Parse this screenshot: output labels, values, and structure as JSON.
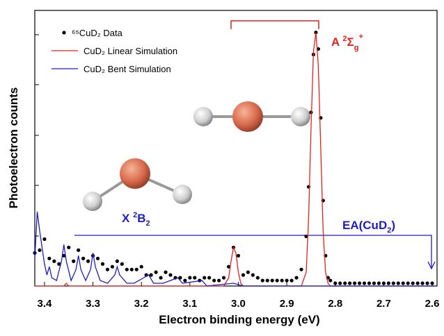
{
  "chart_data": {
    "type": "spectrum",
    "xlabel": "Electron binding energy (eV)",
    "ylabel": "Photoelectron counts",
    "xlim": [
      3.42,
      2.59
    ],
    "ylim": [
      0,
      100
    ],
    "xticks": [
      3.4,
      3.3,
      3.2,
      3.1,
      {
        "value": 3.0,
        "label": "3.0"
      },
      2.9,
      2.8,
      2.7,
      2.6
    ],
    "legend": "upper left",
    "series": [
      {
        "name": "⁶⁵CuD₂ Data",
        "style": "dots",
        "color": "#000000",
        "x": [
          3.42,
          3.41,
          3.4,
          3.39,
          3.38,
          3.37,
          3.36,
          3.35,
          3.34,
          3.33,
          3.32,
          3.31,
          3.3,
          3.29,
          3.28,
          3.27,
          3.26,
          3.25,
          3.24,
          3.23,
          3.22,
          3.21,
          3.2,
          3.19,
          3.18,
          3.17,
          3.16,
          3.15,
          3.14,
          3.13,
          3.12,
          3.11,
          3.1,
          3.09,
          3.08,
          3.07,
          3.06,
          3.05,
          3.04,
          3.03,
          3.02,
          3.01,
          3.0,
          2.99,
          2.98,
          2.97,
          2.96,
          2.95,
          2.94,
          2.93,
          2.92,
          2.91,
          2.9,
          2.89,
          2.88,
          2.87,
          2.86,
          2.855,
          2.85,
          2.845,
          2.84,
          2.835,
          2.83,
          2.825,
          2.82,
          2.815,
          2.81,
          2.8,
          2.79,
          2.78,
          2.77,
          2.76,
          2.75,
          2.74,
          2.73,
          2.72,
          2.71,
          2.7,
          2.69,
          2.68,
          2.67,
          2.66,
          2.65,
          2.64,
          2.63,
          2.62,
          2.61,
          2.6
        ],
        "values": [
          12,
          13,
          17,
          10,
          9,
          8,
          11,
          14,
          9,
          13,
          10,
          9,
          11,
          10,
          8,
          6,
          7,
          9,
          8,
          6,
          6,
          6,
          7,
          4,
          4,
          5,
          3,
          5,
          4,
          3,
          3,
          2,
          3,
          3,
          2,
          3,
          3,
          2,
          2,
          3,
          7,
          14,
          11,
          4,
          5,
          4,
          3,
          2,
          2,
          2,
          2,
          2,
          2,
          2,
          3,
          6,
          18,
          36,
          63,
          84,
          92,
          86,
          61,
          31,
          11,
          3,
          2,
          1,
          1,
          1,
          1,
          1,
          1,
          1,
          1,
          1,
          1,
          1,
          1,
          1,
          1,
          1,
          1,
          1,
          1,
          1,
          1,
          1
        ]
      },
      {
        "name": "CuD₂ Linear Simulation",
        "style": "line",
        "color": "#e8201a",
        "x": [
          3.42,
          3.36,
          3.355,
          3.35,
          3.03,
          3.02,
          3.015,
          3.01,
          3.005,
          3.0,
          2.995,
          2.99,
          2.87,
          2.86,
          2.855,
          2.85,
          2.845,
          2.84,
          2.835,
          2.83,
          2.825,
          2.82,
          2.815,
          2.81,
          2.59
        ],
        "values": [
          0,
          0,
          1,
          0,
          0,
          3,
          9,
          14,
          12,
          5,
          1,
          0,
          0,
          5,
          25,
          57,
          85,
          92,
          80,
          50,
          20,
          5,
          1,
          0,
          0
        ]
      },
      {
        "name": "CuD₂ Bent Simulation",
        "style": "line",
        "color": "#1c1cc8",
        "x": [
          3.42,
          3.415,
          3.41,
          3.4,
          3.395,
          3.39,
          3.385,
          3.375,
          3.365,
          3.36,
          3.355,
          3.345,
          3.335,
          3.33,
          3.325,
          3.315,
          3.305,
          3.3,
          3.295,
          3.285,
          3.27,
          3.255,
          3.25,
          3.245,
          3.23,
          3.215,
          3.185,
          3.175,
          3.155,
          3.125,
          3.115,
          3.075,
          3.065,
          3.01,
          2.99,
          2.59
        ],
        "values": [
          10,
          27,
          20,
          8,
          4,
          7,
          3,
          2,
          9,
          15,
          9,
          2,
          6,
          11,
          6,
          2,
          6,
          12,
          7,
          2,
          1,
          4,
          7,
          4,
          1,
          1,
          4,
          1,
          1,
          3,
          1,
          2,
          0,
          1,
          0,
          0
        ]
      }
    ],
    "annotations": [
      {
        "parts": [
          "A ",
          "2",
          "Σ",
          "g",
          "+"
        ],
        "color": "#e8201a"
      },
      {
        "parts": [
          "X ",
          "2",
          "B",
          "2"
        ],
        "color": "#1c1cc8"
      },
      {
        "parts": [
          "EA(CuD",
          "2",
          ")"
        ],
        "color": "#1c1cc8"
      }
    ]
  }
}
